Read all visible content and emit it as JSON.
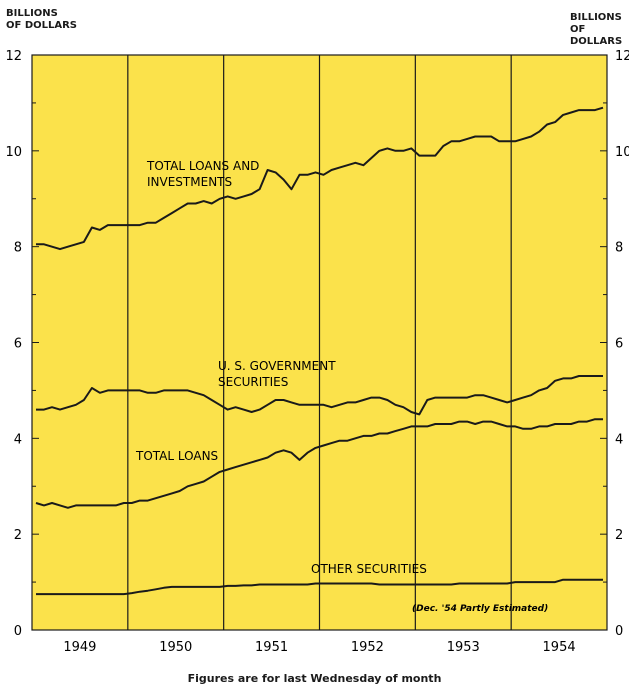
{
  "units": {
    "left": "BILLIONS\nOF DOLLARS",
    "right": "BILLIONS\nOF DOLLARS"
  },
  "footnote": "Figures are for last Wednesday of month",
  "estimate_note": "(Dec. '54 Partly Estimated)",
  "colors": {
    "background": "#fbe24b",
    "line": "#1a1a1a",
    "divider": "#1a1a1a"
  },
  "chart_data": {
    "type": "line",
    "ylim": [
      0,
      12
    ],
    "y_ticks": [
      "0",
      "2",
      "4",
      "6",
      "8",
      "10",
      "12"
    ],
    "x_start": "1949-01",
    "x_end": "1954-12",
    "year_labels": [
      "1949",
      "1950",
      "1951",
      "1952",
      "1953",
      "1954"
    ],
    "grid": "vertical lines at year boundaries",
    "series": [
      {
        "name": "TOTAL LOANS AND\nINVESTMENTS",
        "values": [
          8.05,
          8.05,
          8.0,
          7.95,
          8.0,
          8.05,
          8.1,
          8.4,
          8.35,
          8.45,
          8.45,
          8.45,
          8.45,
          8.45,
          8.5,
          8.5,
          8.6,
          8.7,
          8.8,
          8.9,
          8.9,
          8.95,
          8.9,
          9.0,
          9.05,
          9.0,
          9.05,
          9.1,
          9.2,
          9.6,
          9.55,
          9.4,
          9.2,
          9.5,
          9.5,
          9.55,
          9.5,
          9.6,
          9.65,
          9.7,
          9.75,
          9.7,
          9.85,
          10.0,
          10.05,
          10.0,
          10.0,
          10.05,
          9.9,
          9.9,
          9.9,
          10.1,
          10.2,
          10.2,
          10.25,
          10.3,
          10.3,
          10.3,
          10.2,
          10.2,
          10.2,
          10.25,
          10.3,
          10.4,
          10.55,
          10.6,
          10.75,
          10.8,
          10.85,
          10.85,
          10.85,
          10.9
        ]
      },
      {
        "name": "U. S. GOVERNMENT\nSECURITIES",
        "values": [
          4.6,
          4.6,
          4.65,
          4.6,
          4.65,
          4.7,
          4.8,
          5.05,
          4.95,
          5.0,
          5.0,
          5.0,
          5.0,
          5.0,
          4.95,
          4.95,
          5.0,
          5.0,
          5.0,
          5.0,
          4.95,
          4.9,
          4.8,
          4.7,
          4.6,
          4.65,
          4.6,
          4.55,
          4.6,
          4.7,
          4.8,
          4.8,
          4.75,
          4.7,
          4.7,
          4.7,
          4.7,
          4.65,
          4.7,
          4.75,
          4.75,
          4.8,
          4.85,
          4.85,
          4.8,
          4.7,
          4.65,
          4.55,
          4.5,
          4.8,
          4.85,
          4.85,
          4.85,
          4.85,
          4.85,
          4.9,
          4.9,
          4.85,
          4.8,
          4.75,
          4.8,
          4.85,
          4.9,
          5.0,
          5.05,
          5.2,
          5.25,
          5.25,
          5.3,
          5.3,
          5.3,
          5.3
        ]
      },
      {
        "name": "TOTAL LOANS",
        "values": [
          2.65,
          2.6,
          2.65,
          2.6,
          2.55,
          2.6,
          2.6,
          2.6,
          2.6,
          2.6,
          2.6,
          2.65,
          2.65,
          2.7,
          2.7,
          2.75,
          2.8,
          2.85,
          2.9,
          3.0,
          3.05,
          3.1,
          3.2,
          3.3,
          3.35,
          3.4,
          3.45,
          3.5,
          3.55,
          3.6,
          3.7,
          3.75,
          3.7,
          3.55,
          3.7,
          3.8,
          3.85,
          3.9,
          3.95,
          3.95,
          4.0,
          4.05,
          4.05,
          4.1,
          4.1,
          4.15,
          4.2,
          4.25,
          4.25,
          4.25,
          4.3,
          4.3,
          4.3,
          4.35,
          4.35,
          4.3,
          4.35,
          4.35,
          4.3,
          4.25,
          4.25,
          4.2,
          4.2,
          4.25,
          4.25,
          4.3,
          4.3,
          4.3,
          4.35,
          4.35,
          4.4,
          4.4
        ]
      },
      {
        "name": "OTHER SECURITIES",
        "values": [
          0.75,
          0.75,
          0.75,
          0.75,
          0.75,
          0.75,
          0.75,
          0.75,
          0.75,
          0.75,
          0.75,
          0.75,
          0.77,
          0.8,
          0.82,
          0.85,
          0.88,
          0.9,
          0.9,
          0.9,
          0.9,
          0.9,
          0.9,
          0.9,
          0.92,
          0.92,
          0.93,
          0.93,
          0.95,
          0.95,
          0.95,
          0.95,
          0.95,
          0.95,
          0.95,
          0.97,
          0.97,
          0.97,
          0.97,
          0.97,
          0.97,
          0.97,
          0.97,
          0.95,
          0.95,
          0.95,
          0.95,
          0.95,
          0.95,
          0.95,
          0.95,
          0.95,
          0.95,
          0.97,
          0.97,
          0.97,
          0.97,
          0.97,
          0.97,
          0.97,
          1.0,
          1.0,
          1.0,
          1.0,
          1.0,
          1.0,
          1.05,
          1.05,
          1.05,
          1.05,
          1.05,
          1.05
        ]
      }
    ]
  }
}
